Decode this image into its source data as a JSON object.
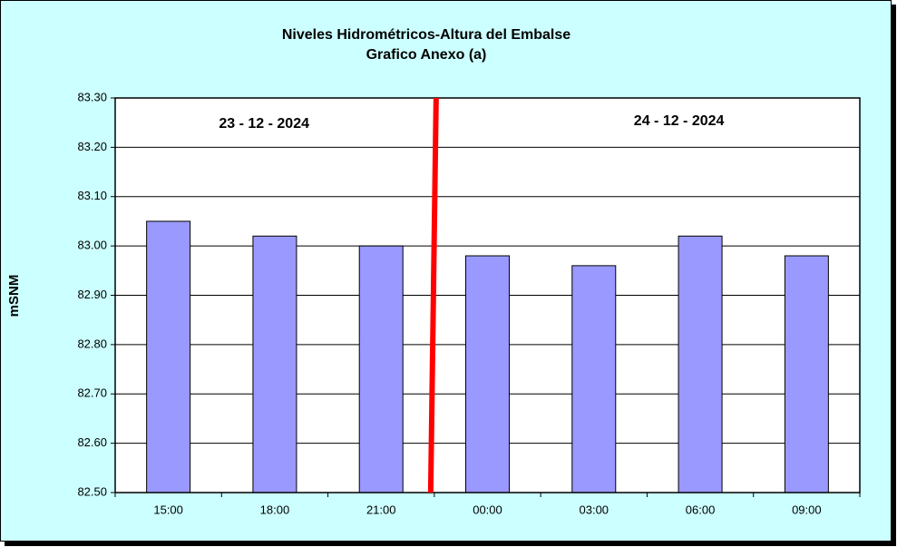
{
  "chart_data": {
    "type": "bar",
    "title": "Niveles Hidrométricos-Altura del Embalse",
    "subtitle": "Grafico Anexo (a)",
    "y_label": "mSNM",
    "annotations": [
      "23 - 12 - 2024",
      "24 - 12 - 2024"
    ],
    "categories": [
      "15:00",
      "18:00",
      "21:00",
      "00:00",
      "03:00",
      "06:00",
      "09:00"
    ],
    "values": [
      83.05,
      83.02,
      83.0,
      82.98,
      82.96,
      83.02,
      82.98
    ],
    "color": "#9999ff",
    "ylim": [
      82.5,
      83.3
    ],
    "yticks": [
      {
        "value": 82.5,
        "label": "82.50"
      },
      {
        "value": 82.6,
        "label": "82.60"
      },
      {
        "value": 82.7,
        "label": "82.70"
      },
      {
        "value": 82.8,
        "label": "82.80"
      },
      {
        "value": 82.9,
        "label": "82.90"
      },
      {
        "value": 83.0,
        "label": "83.00"
      },
      {
        "value": 83.1,
        "label": "83.10"
      },
      {
        "value": 83.2,
        "label": "83.20"
      },
      {
        "value": 83.3,
        "label": "83.30"
      }
    ],
    "grid": true
  }
}
